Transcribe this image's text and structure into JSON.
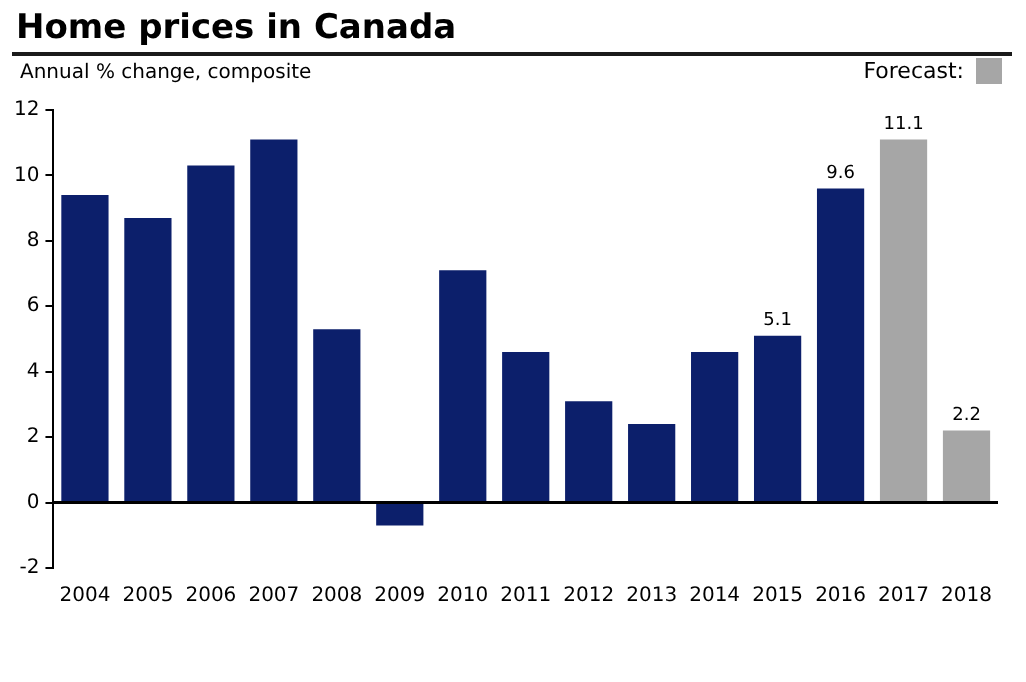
{
  "chart_data": {
    "type": "bar",
    "title": "Home prices in Canada",
    "subtitle": "Annual % change, composite",
    "categories": [
      "2004",
      "2005",
      "2006",
      "2007",
      "2008",
      "2009",
      "2010",
      "2011",
      "2012",
      "2013",
      "2014",
      "2015",
      "2016",
      "2017",
      "2018"
    ],
    "series": [
      {
        "color": "#0c1f6b",
        "values": [
          9.4,
          8.7,
          10.3,
          11.1,
          5.3,
          -0.7,
          7.1,
          4.6,
          3.1,
          2.4,
          4.6,
          5.1,
          9.6,
          null,
          null
        ],
        "value_labels": [
          null,
          null,
          null,
          null,
          null,
          null,
          null,
          null,
          null,
          null,
          null,
          "5.1",
          "9.6",
          null,
          null
        ]
      },
      {
        "name": "Forecast:",
        "color": "#a6a6a6",
        "values": [
          null,
          null,
          null,
          null,
          null,
          null,
          null,
          null,
          null,
          null,
          null,
          null,
          null,
          11.1,
          2.2
        ],
        "value_labels": [
          null,
          null,
          null,
          null,
          null,
          null,
          null,
          null,
          null,
          null,
          null,
          null,
          null,
          "11.1",
          "2.2"
        ]
      }
    ],
    "ylim": [
      -2,
      12
    ],
    "yticks": [
      -2,
      0,
      2,
      4,
      6,
      8,
      10,
      12
    ],
    "grid": false,
    "ref_lines": [
      {
        "axis": "y",
        "value": 0,
        "color": "#000000"
      }
    ],
    "legend": "top right"
  }
}
